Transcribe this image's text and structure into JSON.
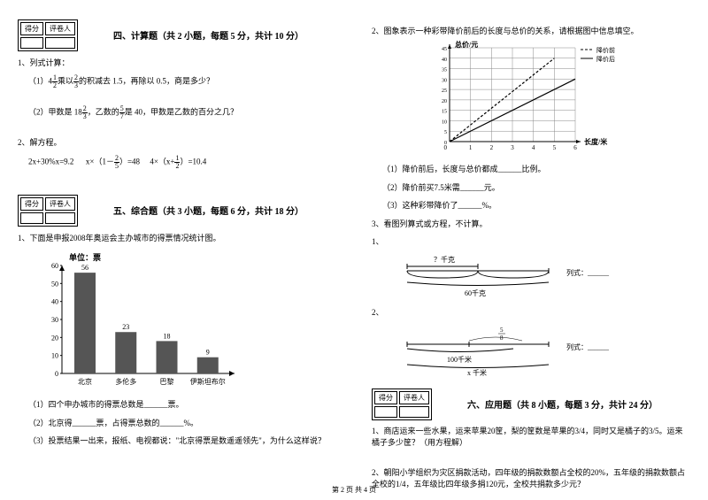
{
  "left": {
    "score_header": [
      "得分",
      "评卷人"
    ],
    "section4_title": "四、计算题（共 2 小题，每题 5 分，共计 10 分）",
    "q1_label": "1、列式计算：",
    "q1_1_pre": "（1）4",
    "q1_1_frac1": {
      "n": "1",
      "d": "2"
    },
    "q1_1_mid": "乘以",
    "q1_1_frac2": {
      "n": "2",
      "d": "3"
    },
    "q1_1_post": "的积减去 1.5，再除以 0.5，商是多少？",
    "q1_2_pre": "（2）甲数是 18",
    "q1_2_frac1": {
      "n": "2",
      "d": "3"
    },
    "q1_2_mid": "，乙数的",
    "q1_2_frac2": {
      "n": "5",
      "d": "7"
    },
    "q1_2_post": "是 40，甲数是乙数的百分之几？",
    "q2_label": "2、解方程。",
    "eq1": "2x+30%x=9.2",
    "eq2_pre": "x×（1－",
    "eq2_frac": {
      "n": "2",
      "d": "5"
    },
    "eq2_post": "）=48",
    "eq3_pre": "4×（x+",
    "eq3_frac": {
      "n": "1",
      "d": "2"
    },
    "eq3_post": "）=10.4",
    "section5_title": "五、综合题（共 3 小题，每题 6 分，共计 18 分）",
    "q5_1": "1、下面是申报2008年奥运会主办城市的得票情况统计图。",
    "chart": {
      "unit": "单位：票",
      "y_ticks": [
        0,
        10,
        20,
        30,
        40,
        50,
        60
      ],
      "bars": [
        {
          "label": "北京",
          "value": 56
        },
        {
          "label": "多伦多",
          "value": 23
        },
        {
          "label": "巴黎",
          "value": 18
        },
        {
          "label": "伊斯坦布尔",
          "value": 9
        }
      ],
      "color": "#555555"
    },
    "q5_1_sub1": "（1）四个申办城市的得票总数是______票。",
    "q5_1_sub2": "（2）北京得______票，占得票总数的______%。",
    "q5_1_sub3": "（3）投票结果一出来，报纸、电视都说：\"北京得票是数遥遥领先\"，为什么这样说？"
  },
  "right": {
    "q2_label": "2、图象表示一种彩带降价前后的长度与总价的关系，请根据图中信息填空。",
    "legend": {
      "dashed": "降价前",
      "solid": "降价后"
    },
    "grid": {
      "y_label": "总价/元",
      "x_label": "长度/米",
      "y_ticks": [
        0,
        5,
        10,
        15,
        20,
        25,
        30,
        35,
        40,
        45
      ],
      "x_ticks": [
        0,
        1,
        2,
        3,
        4,
        5,
        6
      ],
      "line_dashed": [
        [
          0,
          0
        ],
        [
          5,
          40
        ]
      ],
      "line_solid": [
        [
          0,
          0
        ],
        [
          6,
          30
        ]
      ],
      "bg": "#f5f5f5"
    },
    "q2_sub1": "（1）降价前后，长度与总价都成______比例。",
    "q2_sub2": "（2）降价前买7.5米需______元。",
    "q2_sub3": "（3）这种彩带降价了______%。",
    "q3_label": "3、看图列算式或方程，不计算。",
    "q3_1": "1、",
    "diagram1": {
      "top": "？千克",
      "bottom": "60千克",
      "side": "列式：______"
    },
    "q3_2": "2、",
    "diagram2": {
      "frac": {
        "n": "5",
        "d": "8"
      },
      "mid": "100千米",
      "bottom": "x 千米",
      "side": "列式：______"
    },
    "score_header": [
      "得分",
      "评卷人"
    ],
    "section6_title": "六、应用题（共 8 小题，每题 3 分，共计 24 分）",
    "q6_1": "1、商店运来一些水果，运来苹果20筐，梨的筐数是苹果的3/4，同时又是橘子的3/5。运来橘子多少筐？（用方程解）",
    "q6_2": "2、朝阳小学组织为灾区捐款活动，四年级的捐款数额占全校的20%，五年级的捐款数额占全校的1/4，五年级比四年级多捐120元，全校共捐款多少元？"
  },
  "footer": "第 2 页 共 4 页"
}
